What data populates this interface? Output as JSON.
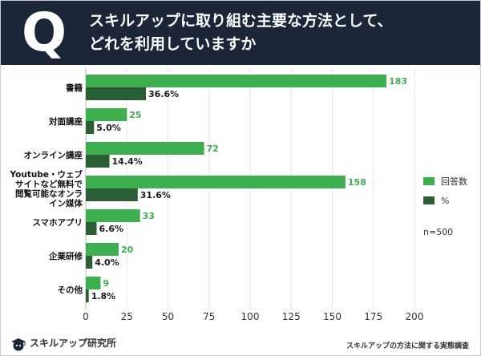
{
  "header": {
    "q_letter": "Q",
    "title_line1": "スキルアップに取り組む主要な方法として、",
    "title_line2": "どれを利用していますか"
  },
  "chart_data": {
    "type": "bar",
    "orientation": "horizontal",
    "categories": [
      [
        "書籍"
      ],
      [
        "対面講座"
      ],
      [
        "オンライン講座"
      ],
      [
        "Youtube・ウェブ",
        "サイトなど無料で",
        "閲覧可能なオンラ",
        "イン媒体"
      ],
      [
        "スマホアプリ"
      ],
      [
        "企業研修"
      ],
      [
        "その他"
      ]
    ],
    "series": [
      {
        "name": "回答数",
        "values": [
          183,
          25,
          72,
          158,
          33,
          20,
          9
        ],
        "labels": [
          "183",
          "25",
          "72",
          "158",
          "33",
          "20",
          "9"
        ],
        "color": "#3daf4e"
      },
      {
        "name": "%",
        "values": [
          36.6,
          5.0,
          14.4,
          31.6,
          6.6,
          4.0,
          1.8
        ],
        "labels": [
          "36.6%",
          "5.0%",
          "14.4%",
          "31.6%",
          "6.6%",
          "4.0%",
          "1.8%"
        ],
        "color": "#2a5e35"
      }
    ],
    "xlim": [
      0,
      200
    ],
    "xticks": [
      0,
      25,
      50,
      75,
      100,
      125,
      150,
      175,
      200
    ],
    "grid": true,
    "legend_position": "right",
    "annotation": "n=500"
  },
  "footer": {
    "brand": "スキルアップ研究所",
    "source": "スキルアップの方法に関する実態調査"
  },
  "colors": {
    "header_bg": "#1b2638",
    "count_bar": "#3daf4e",
    "percent_bar": "#2a5e35"
  }
}
